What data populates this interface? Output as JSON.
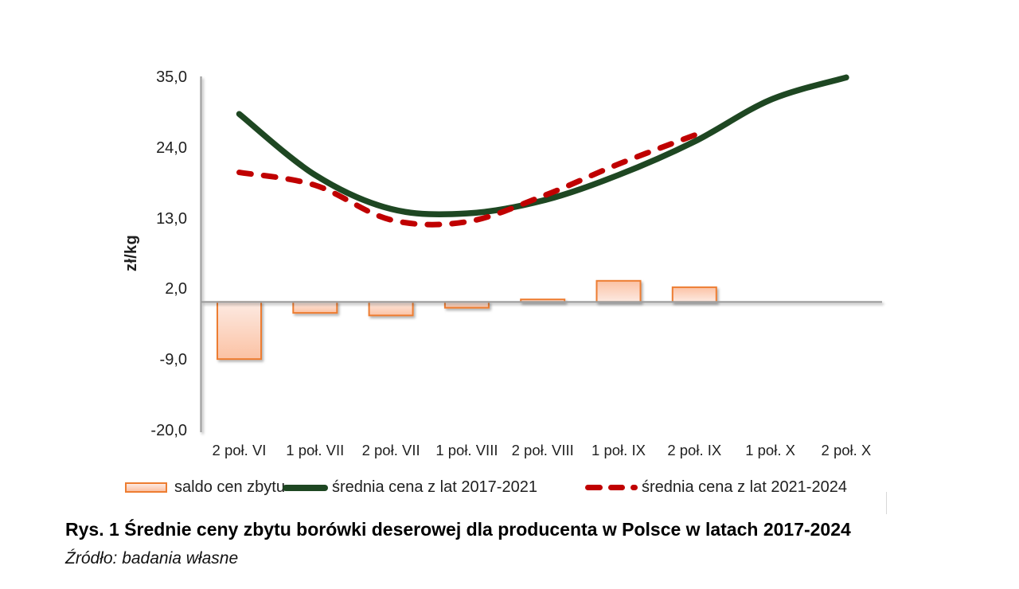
{
  "chart_data": {
    "type": "combo-bar-line",
    "categories": [
      "2 poł. VI",
      "1 poł. VII",
      "2 poł. VII",
      "1 poł. VIII",
      "2 poł. VIII",
      "1 poł. IX",
      "2 poł. IX",
      "1 poł. X",
      "2 poł. X"
    ],
    "series": [
      {
        "name": "saldo cen zbytu",
        "type": "bar",
        "values": [
          -8.9,
          -1.7,
          -2.1,
          -0.9,
          0.4,
          3.3,
          2.3,
          null,
          null
        ]
      },
      {
        "name": "średnia cena z lat 2017-2021",
        "type": "line",
        "style": "solid",
        "values": [
          29.3,
          19.8,
          14.5,
          13.8,
          15.8,
          19.8,
          25.0,
          31.5,
          35.0
        ]
      },
      {
        "name": "średnia cena z lat 2021-2024",
        "type": "line",
        "style": "dashed",
        "values": [
          20.2,
          18.2,
          12.8,
          12.5,
          16.5,
          21.5,
          26.0,
          null,
          null
        ]
      }
    ],
    "ylabel": "zł/kg",
    "xlabel": "",
    "title": "",
    "ylim": [
      -20,
      35
    ],
    "ytick_values": [
      35,
      24,
      13,
      2,
      -9,
      -20
    ],
    "ytick_labels": [
      "35,0",
      "24,0",
      "13,0",
      "2,0",
      "-9,0",
      "-20,0"
    ],
    "grid": false,
    "legend_position": "bottom"
  },
  "colors": {
    "bar_border": "#ed7d31",
    "bar_fill_light": "#fdeae2",
    "bar_fill_deep": "#fbc2a4",
    "line_2017_2021": "#1e4722",
    "line_2021_2024": "#c00000",
    "axis": "#9e9e9e",
    "text": "#1f1f1f"
  },
  "caption": {
    "title": "Rys. 1 Średnie ceny zbytu borówki deserowej dla producenta w Polsce w latach 2017-2024",
    "source": "Źródło: badania własne"
  }
}
